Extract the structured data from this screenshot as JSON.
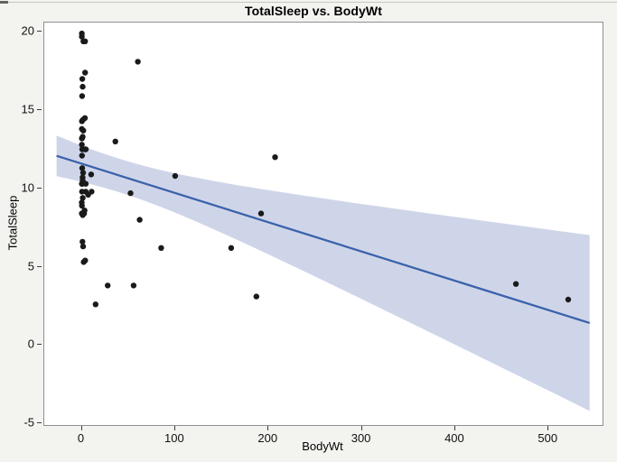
{
  "title": "TotalSleep vs. BodyWt",
  "chart_data": {
    "type": "scatter",
    "title": "TotalSleep vs. BodyWt",
    "xlabel": "BodyWt",
    "ylabel": "TotalSleep",
    "xlim": [
      -40.2,
      557.8
    ],
    "ylim": [
      -5.11,
      20.6
    ],
    "x_ticks": [
      0,
      100,
      200,
      300,
      400,
      500
    ],
    "y_ticks": [
      -5,
      0,
      5,
      10,
      15,
      20
    ],
    "grid": false,
    "legend": "none",
    "points": [
      [
        0.01,
        19.9
      ],
      [
        0.02,
        19.7
      ],
      [
        1.7,
        19.4
      ],
      [
        3.5,
        19.4
      ],
      [
        60,
        18.1
      ],
      [
        3.5,
        17.4
      ],
      [
        0.5,
        17.0
      ],
      [
        0.9,
        16.5
      ],
      [
        0.3,
        15.9
      ],
      [
        3.3,
        14.5
      ],
      [
        1.35,
        14.4
      ],
      [
        0.12,
        14.3
      ],
      [
        0.1,
        13.8
      ],
      [
        1.6,
        13.7
      ],
      [
        0.9,
        13.3
      ],
      [
        0.02,
        13.2
      ],
      [
        0.28,
        13.2
      ],
      [
        36,
        13.0
      ],
      [
        0.05,
        12.8
      ],
      [
        0.43,
        12.5
      ],
      [
        3.4,
        12.5
      ],
      [
        4.3,
        12.5
      ],
      [
        0.2,
        12.1
      ],
      [
        207,
        12.0
      ],
      [
        0.4,
        11.3
      ],
      [
        1.4,
        11.0
      ],
      [
        10,
        10.9
      ],
      [
        100,
        10.8
      ],
      [
        0.8,
        10.7
      ],
      [
        0.9,
        10.5
      ],
      [
        0.55,
        10.3
      ],
      [
        0.06,
        10.3
      ],
      [
        4.2,
        10.3
      ],
      [
        0.2,
        9.8
      ],
      [
        4.2,
        9.8
      ],
      [
        10.55,
        9.8
      ],
      [
        52.2,
        9.7
      ],
      [
        6.8,
        9.6
      ],
      [
        1.04,
        9.4
      ],
      [
        0.005,
        9.1
      ],
      [
        0.104,
        8.9
      ],
      [
        3.0,
        8.6
      ],
      [
        2.5,
        8.4
      ],
      [
        0.075,
        8.4
      ],
      [
        0.122,
        8.4
      ],
      [
        192,
        8.4
      ],
      [
        1.0,
        8.3
      ],
      [
        62,
        8.0
      ],
      [
        0.75,
        6.6
      ],
      [
        1.41,
        6.3
      ],
      [
        85,
        6.2
      ],
      [
        160,
        6.2
      ],
      [
        3.6,
        5.4
      ],
      [
        2.0,
        5.3
      ],
      [
        465,
        3.9
      ],
      [
        27.7,
        3.8
      ],
      [
        55.5,
        3.8
      ],
      [
        187,
        3.1
      ],
      [
        521,
        2.9
      ],
      [
        14.8,
        2.6
      ]
    ],
    "fit": {
      "type": "linear",
      "equation": "TotalSleep = 11.58 - 0.0187 * BodyWt",
      "intercept": 11.58,
      "slope": -0.0187,
      "x_start": -27,
      "x_end": 544
    },
    "confidence_band": {
      "center_x": 40,
      "n": 57,
      "sxx": 548300,
      "scale": 8.1
    },
    "colors": {
      "point": "#1a1a1a",
      "line": "#3a62ab",
      "band": "#cfd5e9",
      "plot_bg": "#ffffff",
      "page_bg": "#f3f3f0",
      "frame": "#8f8f8f"
    },
    "point_radius": 3.2,
    "line_width": 2.3
  }
}
